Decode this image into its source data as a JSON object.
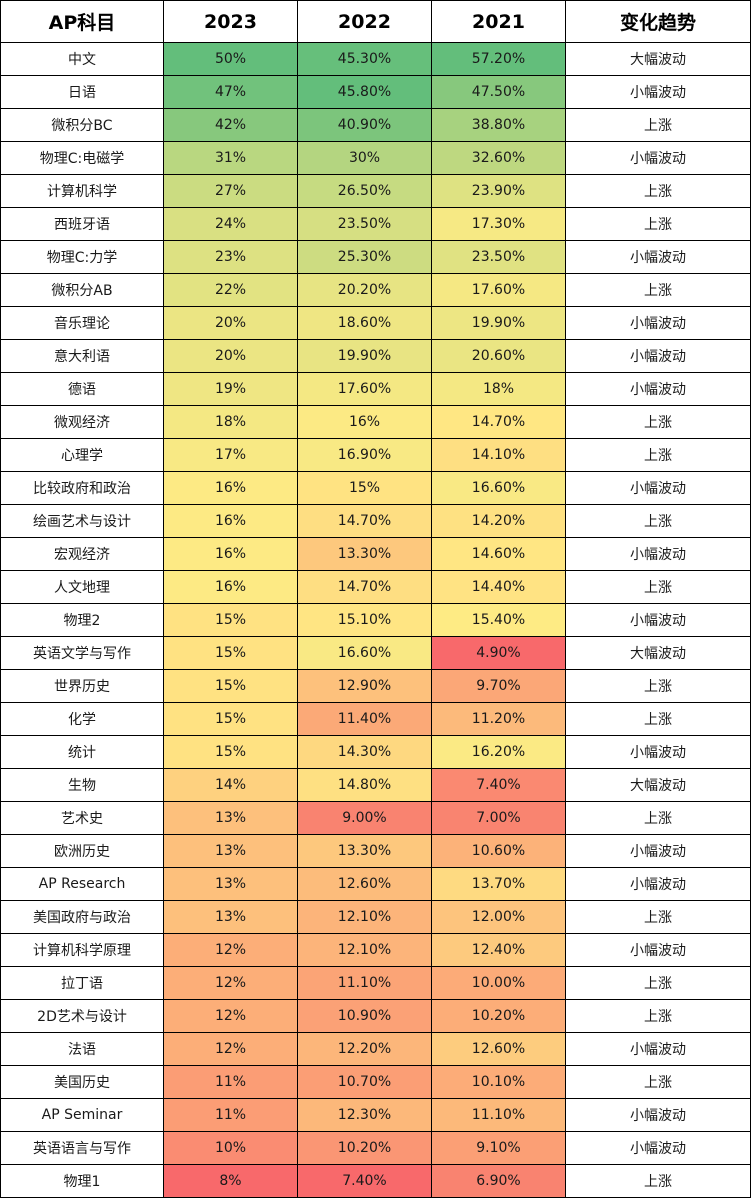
{
  "chart_data": {
    "type": "table",
    "columns": [
      "AP科目",
      "2023",
      "2022",
      "2021",
      "变化趋势"
    ],
    "rows": [
      {
        "subject": "中文",
        "y2023": "50%",
        "y2022": "45.30%",
        "y2021": "57.20%",
        "trend": "大幅波动",
        "v": [
          50,
          45.3,
          57.2
        ]
      },
      {
        "subject": "日语",
        "y2023": "47%",
        "y2022": "45.80%",
        "y2021": "47.50%",
        "trend": "小幅波动",
        "v": [
          47,
          45.8,
          47.5
        ]
      },
      {
        "subject": "微积分BC",
        "y2023": "42%",
        "y2022": "40.90%",
        "y2021": "38.80%",
        "trend": "上涨",
        "v": [
          42,
          40.9,
          38.8
        ]
      },
      {
        "subject": "物理C:电磁学",
        "y2023": "31%",
        "y2022": "30%",
        "y2021": "32.60%",
        "trend": "小幅波动",
        "v": [
          31,
          30,
          32.6
        ]
      },
      {
        "subject": "计算机科学",
        "y2023": "27%",
        "y2022": "26.50%",
        "y2021": "23.90%",
        "trend": "上涨",
        "v": [
          27,
          26.5,
          23.9
        ]
      },
      {
        "subject": "西班牙语",
        "y2023": "24%",
        "y2022": "23.50%",
        "y2021": "17.30%",
        "trend": "上涨",
        "v": [
          24,
          23.5,
          17.3
        ]
      },
      {
        "subject": "物理C:力学",
        "y2023": "23%",
        "y2022": "25.30%",
        "y2021": "23.50%",
        "trend": "小幅波动",
        "v": [
          23,
          25.3,
          23.5
        ]
      },
      {
        "subject": "微积分AB",
        "y2023": "22%",
        "y2022": "20.20%",
        "y2021": "17.60%",
        "trend": "上涨",
        "v": [
          22,
          20.2,
          17.6
        ]
      },
      {
        "subject": "音乐理论",
        "y2023": "20%",
        "y2022": "18.60%",
        "y2021": "19.90%",
        "trend": "小幅波动",
        "v": [
          20,
          18.6,
          19.9
        ]
      },
      {
        "subject": "意大利语",
        "y2023": "20%",
        "y2022": "19.90%",
        "y2021": "20.60%",
        "trend": "小幅波动",
        "v": [
          20,
          19.9,
          20.6
        ]
      },
      {
        "subject": "德语",
        "y2023": "19%",
        "y2022": "17.60%",
        "y2021": "18%",
        "trend": "小幅波动",
        "v": [
          19,
          17.6,
          18
        ]
      },
      {
        "subject": "微观经济",
        "y2023": "18%",
        "y2022": "16%",
        "y2021": "14.70%",
        "trend": "上涨",
        "v": [
          18,
          16,
          14.7
        ]
      },
      {
        "subject": "心理学",
        "y2023": "17%",
        "y2022": "16.90%",
        "y2021": "14.10%",
        "trend": "上涨",
        "v": [
          17,
          16.9,
          14.1
        ]
      },
      {
        "subject": "比较政府和政治",
        "y2023": "16%",
        "y2022": "15%",
        "y2021": "16.60%",
        "trend": "小幅波动",
        "v": [
          16,
          15,
          16.6
        ]
      },
      {
        "subject": "绘画艺术与设计",
        "y2023": "16%",
        "y2022": "14.70%",
        "y2021": "14.20%",
        "trend": "上涨",
        "v": [
          16,
          14.7,
          14.2
        ]
      },
      {
        "subject": "宏观经济",
        "y2023": "16%",
        "y2022": "13.30%",
        "y2021": "14.60%",
        "trend": "小幅波动",
        "v": [
          16,
          13.3,
          14.6
        ]
      },
      {
        "subject": "人文地理",
        "y2023": "16%",
        "y2022": "14.70%",
        "y2021": "14.40%",
        "trend": "上涨",
        "v": [
          16,
          14.7,
          14.4
        ]
      },
      {
        "subject": "物理2",
        "y2023": "15%",
        "y2022": "15.10%",
        "y2021": "15.40%",
        "trend": "小幅波动",
        "v": [
          15,
          15.1,
          15.4
        ]
      },
      {
        "subject": "英语文学与写作",
        "y2023": "15%",
        "y2022": "16.60%",
        "y2021": "4.90%",
        "trend": "大幅波动",
        "v": [
          15,
          16.6,
          4.9
        ]
      },
      {
        "subject": "世界历史",
        "y2023": "15%",
        "y2022": "12.90%",
        "y2021": "9.70%",
        "trend": "上涨",
        "v": [
          15,
          12.9,
          9.7
        ]
      },
      {
        "subject": "化学",
        "y2023": "15%",
        "y2022": "11.40%",
        "y2021": "11.20%",
        "trend": "上涨",
        "v": [
          15,
          11.4,
          11.2
        ]
      },
      {
        "subject": "统计",
        "y2023": "15%",
        "y2022": "14.30%",
        "y2021": "16.20%",
        "trend": "小幅波动",
        "v": [
          15,
          14.3,
          16.2
        ]
      },
      {
        "subject": "生物",
        "y2023": "14%",
        "y2022": "14.80%",
        "y2021": "7.40%",
        "trend": "大幅波动",
        "v": [
          14,
          14.8,
          7.4
        ]
      },
      {
        "subject": "艺术史",
        "y2023": "13%",
        "y2022": "9.00%",
        "y2021": "7.00%",
        "trend": "上涨",
        "v": [
          13,
          9.0,
          7.0
        ]
      },
      {
        "subject": "欧洲历史",
        "y2023": "13%",
        "y2022": "13.30%",
        "y2021": "10.60%",
        "trend": "小幅波动",
        "v": [
          13,
          13.3,
          10.6
        ]
      },
      {
        "subject": "AP Research",
        "y2023": "13%",
        "y2022": "12.60%",
        "y2021": "13.70%",
        "trend": "小幅波动",
        "v": [
          13,
          12.6,
          13.7
        ]
      },
      {
        "subject": "美国政府与政治",
        "y2023": "13%",
        "y2022": "12.10%",
        "y2021": "12.00%",
        "trend": "上涨",
        "v": [
          13,
          12.1,
          12.0
        ]
      },
      {
        "subject": "计算机科学原理",
        "y2023": "12%",
        "y2022": "12.10%",
        "y2021": "12.40%",
        "trend": "小幅波动",
        "v": [
          12,
          12.1,
          12.4
        ]
      },
      {
        "subject": "拉丁语",
        "y2023": "12%",
        "y2022": "11.10%",
        "y2021": "10.00%",
        "trend": "上涨",
        "v": [
          12,
          11.1,
          10.0
        ]
      },
      {
        "subject": "2D艺术与设计",
        "y2023": "12%",
        "y2022": "10.90%",
        "y2021": "10.20%",
        "trend": "上涨",
        "v": [
          12,
          10.9,
          10.2
        ]
      },
      {
        "subject": "法语",
        "y2023": "12%",
        "y2022": "12.20%",
        "y2021": "12.60%",
        "trend": "小幅波动",
        "v": [
          12,
          12.2,
          12.6
        ]
      },
      {
        "subject": "美国历史",
        "y2023": "11%",
        "y2022": "10.70%",
        "y2021": "10.10%",
        "trend": "上涨",
        "v": [
          11,
          10.7,
          10.1
        ]
      },
      {
        "subject": "AP Seminar",
        "y2023": "11%",
        "y2022": "12.30%",
        "y2021": "11.10%",
        "trend": "小幅波动",
        "v": [
          11,
          12.3,
          11.1
        ]
      },
      {
        "subject": "英语语言与写作",
        "y2023": "10%",
        "y2022": "10.20%",
        "y2021": "9.10%",
        "trend": "小幅波动",
        "v": [
          10,
          10.2,
          9.1
        ]
      },
      {
        "subject": "物理1",
        "y2023": "8%",
        "y2022": "7.40%",
        "y2021": "6.90%",
        "trend": "上涨",
        "v": [
          8,
          7.4,
          6.9
        ]
      }
    ],
    "color_scale": {
      "low": "#f8696b",
      "mid": "#ffeb84",
      "high": "#63be7b"
    }
  }
}
